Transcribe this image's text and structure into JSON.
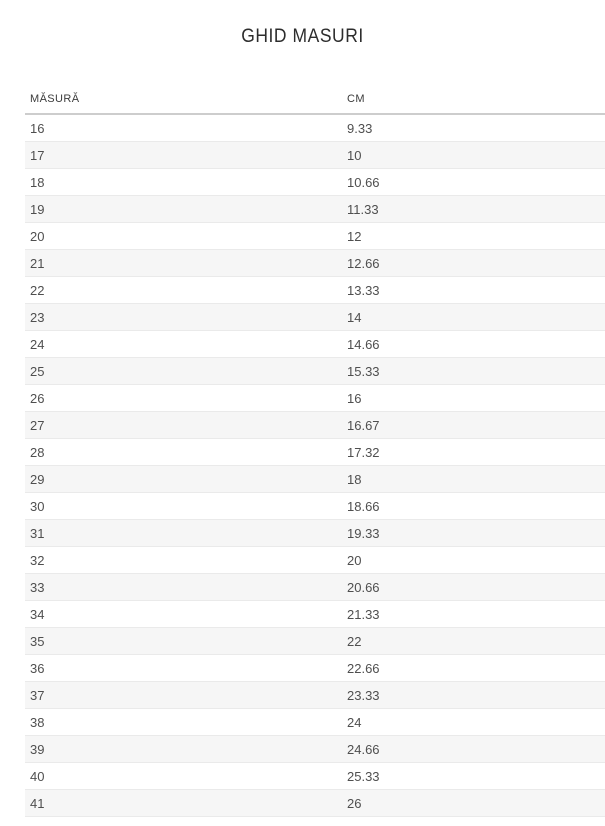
{
  "page": {
    "title": "GHID MASURI"
  },
  "table": {
    "columns": [
      {
        "label": "MĂSURĂ"
      },
      {
        "label": "CM"
      }
    ],
    "rows": [
      {
        "size": "16",
        "cm": "9.33"
      },
      {
        "size": "17",
        "cm": "10"
      },
      {
        "size": "18",
        "cm": "10.66"
      },
      {
        "size": "19",
        "cm": "11.33"
      },
      {
        "size": "20",
        "cm": "12"
      },
      {
        "size": "21",
        "cm": "12.66"
      },
      {
        "size": "22",
        "cm": "13.33"
      },
      {
        "size": "23",
        "cm": "14"
      },
      {
        "size": "24",
        "cm": "14.66"
      },
      {
        "size": "25",
        "cm": "15.33"
      },
      {
        "size": "26",
        "cm": "16"
      },
      {
        "size": "27",
        "cm": "16.67"
      },
      {
        "size": "28",
        "cm": "17.32"
      },
      {
        "size": "29",
        "cm": "18"
      },
      {
        "size": "30",
        "cm": "18.66"
      },
      {
        "size": "31",
        "cm": "19.33"
      },
      {
        "size": "32",
        "cm": "20"
      },
      {
        "size": "33",
        "cm": "20.66"
      },
      {
        "size": "34",
        "cm": "21.33"
      },
      {
        "size": "35",
        "cm": "22"
      },
      {
        "size": "36",
        "cm": "22.66"
      },
      {
        "size": "37",
        "cm": "23.33"
      },
      {
        "size": "38",
        "cm": "24"
      },
      {
        "size": "39",
        "cm": "24.66"
      },
      {
        "size": "40",
        "cm": "25.33"
      },
      {
        "size": "41",
        "cm": "26"
      }
    ]
  },
  "colors": {
    "row_alt_bg": "#f6f6f6",
    "row_border": "#eaeaea",
    "header_border": "#cdcdcd",
    "body_text": "#4f4f4f",
    "title_text": "#2d2d2d"
  }
}
